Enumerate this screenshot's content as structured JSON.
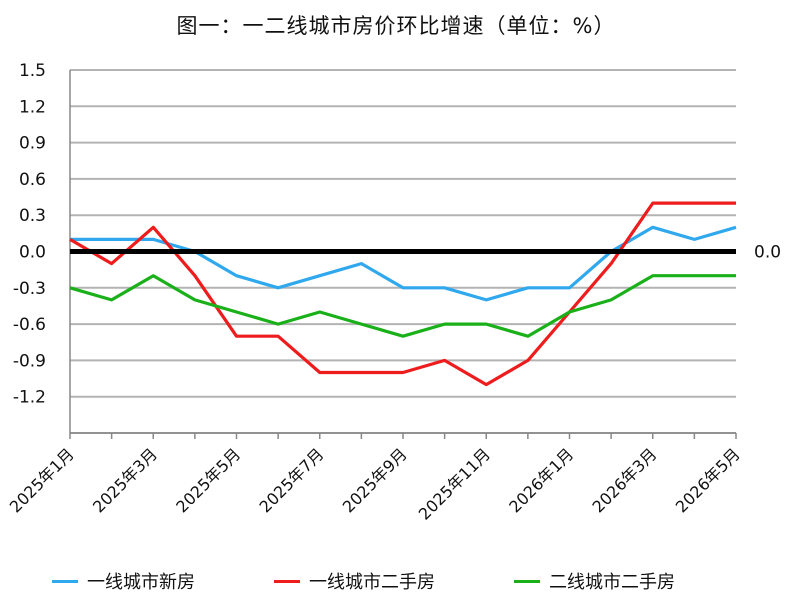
{
  "title": "图一：一二线城市房价环比增速（单位：%）",
  "zero_line_label": "0.0",
  "chart_data": {
    "type": "line",
    "title": "图一：一二线城市房价环比增速（单位：%）",
    "xlabel": "",
    "ylabel": "",
    "ylim": [
      -1.5,
      1.5
    ],
    "y_ticks": [
      1.5,
      1.2,
      0.9,
      0.6,
      0.3,
      0.0,
      -0.3,
      -0.6,
      -0.9,
      -1.2
    ],
    "y_tick_labels": [
      "1.5",
      "1.2",
      "0.9",
      "0.6",
      "0.3",
      "0.0",
      "-0.3",
      "-0.6",
      "-0.9",
      "-1.2"
    ],
    "grid": true,
    "legend_position": "bottom",
    "zero_line_color": "#000000",
    "x": [
      "2025年1月",
      "2025年2月",
      "2025年3月",
      "2025年4月",
      "2025年5月",
      "2025年6月",
      "2025年7月",
      "2025年8月",
      "2025年9月",
      "2025年10月",
      "2025年11月",
      "2025年12月",
      "2026年1月",
      "2026年2月",
      "2026年3月",
      "2026年4月",
      "2026年5月"
    ],
    "x_tick_labels": [
      "2025年1月",
      "2025年3月",
      "2025年5月",
      "2025年7月",
      "2025年9月",
      "2025年11月",
      "2026年1月",
      "2026年3月",
      "2026年5月"
    ],
    "series": [
      {
        "name": "一线城市新房",
        "color": "#2fa8ee",
        "values": [
          0.1,
          0.1,
          0.1,
          0.0,
          -0.2,
          -0.3,
          -0.2,
          -0.1,
          -0.3,
          -0.3,
          -0.4,
          -0.3,
          -0.3,
          0.0,
          0.2,
          0.1,
          0.2
        ]
      },
      {
        "name": "一线城市二手房",
        "color": "#ee1c1c",
        "values": [
          0.1,
          -0.1,
          0.2,
          -0.2,
          -0.7,
          -0.7,
          -1.0,
          -1.0,
          -1.0,
          -0.9,
          -1.1,
          -0.9,
          -0.5,
          -0.1,
          0.4,
          0.4,
          0.4
        ]
      },
      {
        "name": "二线城市二手房",
        "color": "#1ab01a",
        "values": [
          -0.3,
          -0.4,
          -0.2,
          -0.4,
          -0.5,
          -0.6,
          -0.5,
          -0.6,
          -0.7,
          -0.6,
          -0.6,
          -0.7,
          -0.5,
          -0.4,
          -0.2,
          -0.2,
          -0.2
        ]
      }
    ]
  }
}
